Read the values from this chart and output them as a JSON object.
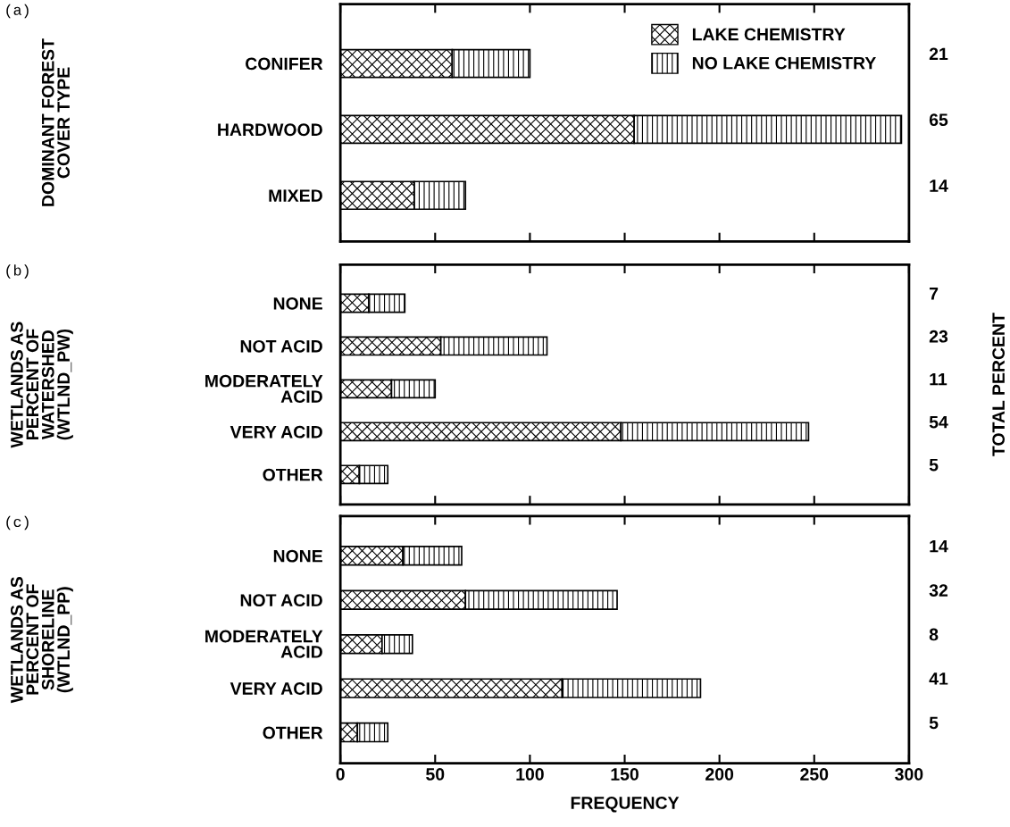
{
  "chart_data": [
    {
      "type": "bar",
      "orientation": "horizontal",
      "stacked": true,
      "ylabel": "DOMINANT FOREST\nCOVER TYPE",
      "categories": [
        "CONIFER",
        "HARDWOOD",
        "MIXED"
      ],
      "series": [
        {
          "name": "LAKE CHEMISTRY",
          "color": "#000000",
          "values": [
            59,
            155,
            39
          ]
        },
        {
          "name": "NO LAKE CHEMISTRY",
          "color": "#000000",
          "values": [
            41,
            141,
            27
          ]
        }
      ],
      "xlim": [
        0,
        300
      ],
      "xticks": [
        0,
        50,
        100,
        150,
        200,
        250,
        300
      ],
      "tick_labels": "y",
      "legend": "top right",
      "grid": false,
      "annotations": [
        "(a)",
        "21",
        "65",
        "14"
      ]
    },
    {
      "type": "bar",
      "orientation": "horizontal",
      "stacked": true,
      "ylabel": "WETLANDS AS\nPERCENT OF\nWATERSHED\n(WTLND_PW)",
      "y2label": "TOTAL PERCENT",
      "categories": [
        "NONE",
        "NOT ACID",
        "MODERATELY\nACID",
        "VERY ACID",
        "OTHER"
      ],
      "series": [
        {
          "color": "#000000",
          "values": [
            15,
            53,
            27,
            148,
            10
          ]
        },
        {
          "color": "#000000",
          "values": [
            19,
            56,
            23,
            99,
            15
          ]
        }
      ],
      "xlim": [
        0,
        300
      ],
      "xticks": [
        0,
        50,
        100,
        150,
        200,
        250,
        300
      ],
      "tick_labels": "y",
      "grid": false,
      "annotations": [
        "(b)",
        "7",
        "23",
        "11",
        "54",
        "5"
      ]
    },
    {
      "type": "bar",
      "orientation": "horizontal",
      "stacked": true,
      "ylabel": "WETLANDS AS\nPERCENT OF\nSHORELINE\n(WTLND_PP)",
      "xlabel": "FREQUENCY",
      "categories": [
        "NONE",
        "NOT ACID",
        "MODERATELY\nACID",
        "VERY ACID",
        "OTHER"
      ],
      "series": [
        {
          "color": "#000000",
          "values": [
            33,
            66,
            22,
            117,
            9
          ]
        },
        {
          "color": "#000000",
          "values": [
            31,
            80,
            16,
            73,
            16
          ]
        }
      ],
      "xlim": [
        0,
        300
      ],
      "xticks": [
        0,
        50,
        100,
        150,
        200,
        250,
        300
      ],
      "grid": false,
      "annotations": [
        "(c)",
        "14",
        "32",
        "8",
        "41",
        "5"
      ]
    }
  ]
}
